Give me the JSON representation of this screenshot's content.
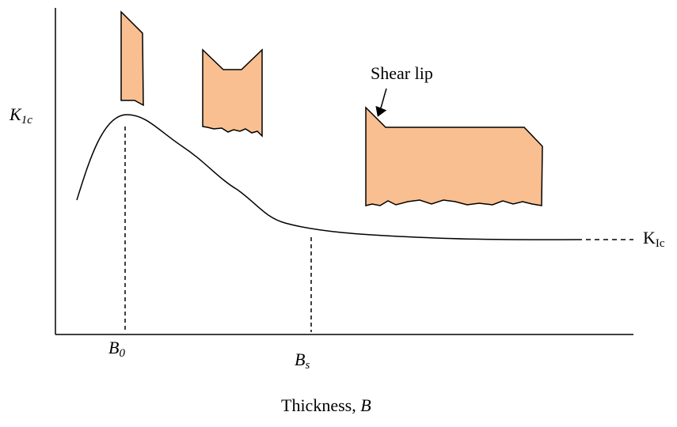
{
  "y_axis_label": {
    "symbol": "K",
    "subscript": "1c"
  },
  "x_axis_label": {
    "text": "Thickness, ",
    "symbol": "B"
  },
  "annotations": {
    "shear_lip": "Shear lip",
    "plateau": {
      "symbol": "K",
      "subscript": "Ic"
    },
    "peak_thickness": {
      "symbol": "B",
      "subscript": "0"
    },
    "plane_strain_thickness": {
      "symbol": "B",
      "subscript": "s"
    }
  }
}
